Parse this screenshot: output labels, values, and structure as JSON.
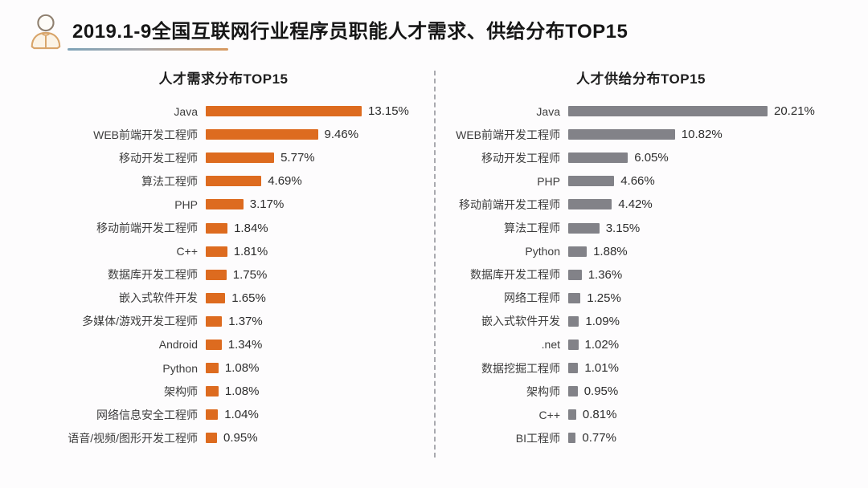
{
  "header": {
    "title": "2019.1-9全国互联网行业程序员职能人才需求、供给分布TOP15",
    "icon": "person-icon"
  },
  "colors": {
    "demand_bar": "#dd6b1f",
    "supply_bar": "#828288",
    "title_text": "#161616",
    "label_text": "#3d3d3d",
    "underline_gradient_left": "#7fa3b8",
    "underline_gradient_right": "#d89a60",
    "divider": "#a9a9af",
    "background": "#fdfcfd"
  },
  "chart_data": [
    {
      "type": "bar",
      "orientation": "horizontal",
      "title": "人才需求分布TOP15",
      "legend": null,
      "grid": false,
      "xlim": [
        0,
        14
      ],
      "bar_color": "#dd6b1f",
      "categories": [
        "Java",
        "WEB前端开发工程师",
        "移动开发工程师",
        "算法工程师",
        "PHP",
        "移动前端开发工程师",
        "C++",
        "数据库开发工程师",
        "嵌入式软件开发",
        "多媒体/游戏开发工程师",
        "Android",
        "Python",
        "架构师",
        "网络信息安全工程师",
        "语音/视频/图形开发工程师"
      ],
      "values": [
        13.15,
        9.46,
        5.77,
        4.69,
        3.17,
        1.84,
        1.81,
        1.75,
        1.65,
        1.37,
        1.34,
        1.08,
        1.08,
        1.04,
        0.95
      ],
      "value_labels": [
        "13.15%",
        "9.46%",
        "5.77%",
        "4.69%",
        "3.17%",
        "1.84%",
        "1.81%",
        "1.75%",
        "1.65%",
        "1.37%",
        "1.34%",
        "1.08%",
        "1.08%",
        "1.04%",
        "0.95%"
      ]
    },
    {
      "type": "bar",
      "orientation": "horizontal",
      "title": "人才供给分布TOP15",
      "legend": null,
      "grid": false,
      "xlim": [
        0,
        21
      ],
      "bar_color": "#828288",
      "categories": [
        "Java",
        "WEB前端开发工程师",
        "移动开发工程师",
        "PHP",
        "移动前端开发工程师",
        "算法工程师",
        "Python",
        "数据库开发工程师",
        "网络工程师",
        "嵌入式软件开发",
        ".net",
        "数据挖掘工程师",
        "架构师",
        "C++",
        "BI工程师"
      ],
      "values": [
        20.21,
        10.82,
        6.05,
        4.66,
        4.42,
        3.15,
        1.88,
        1.36,
        1.25,
        1.09,
        1.02,
        1.01,
        0.95,
        0.81,
        0.77
      ],
      "value_labels": [
        "20.21%",
        "10.82%",
        "6.05%",
        "4.66%",
        "4.42%",
        "3.15%",
        "1.88%",
        "1.36%",
        "1.25%",
        "1.09%",
        "1.02%",
        "1.01%",
        "0.95%",
        "0.81%",
        "0.77%"
      ]
    }
  ]
}
